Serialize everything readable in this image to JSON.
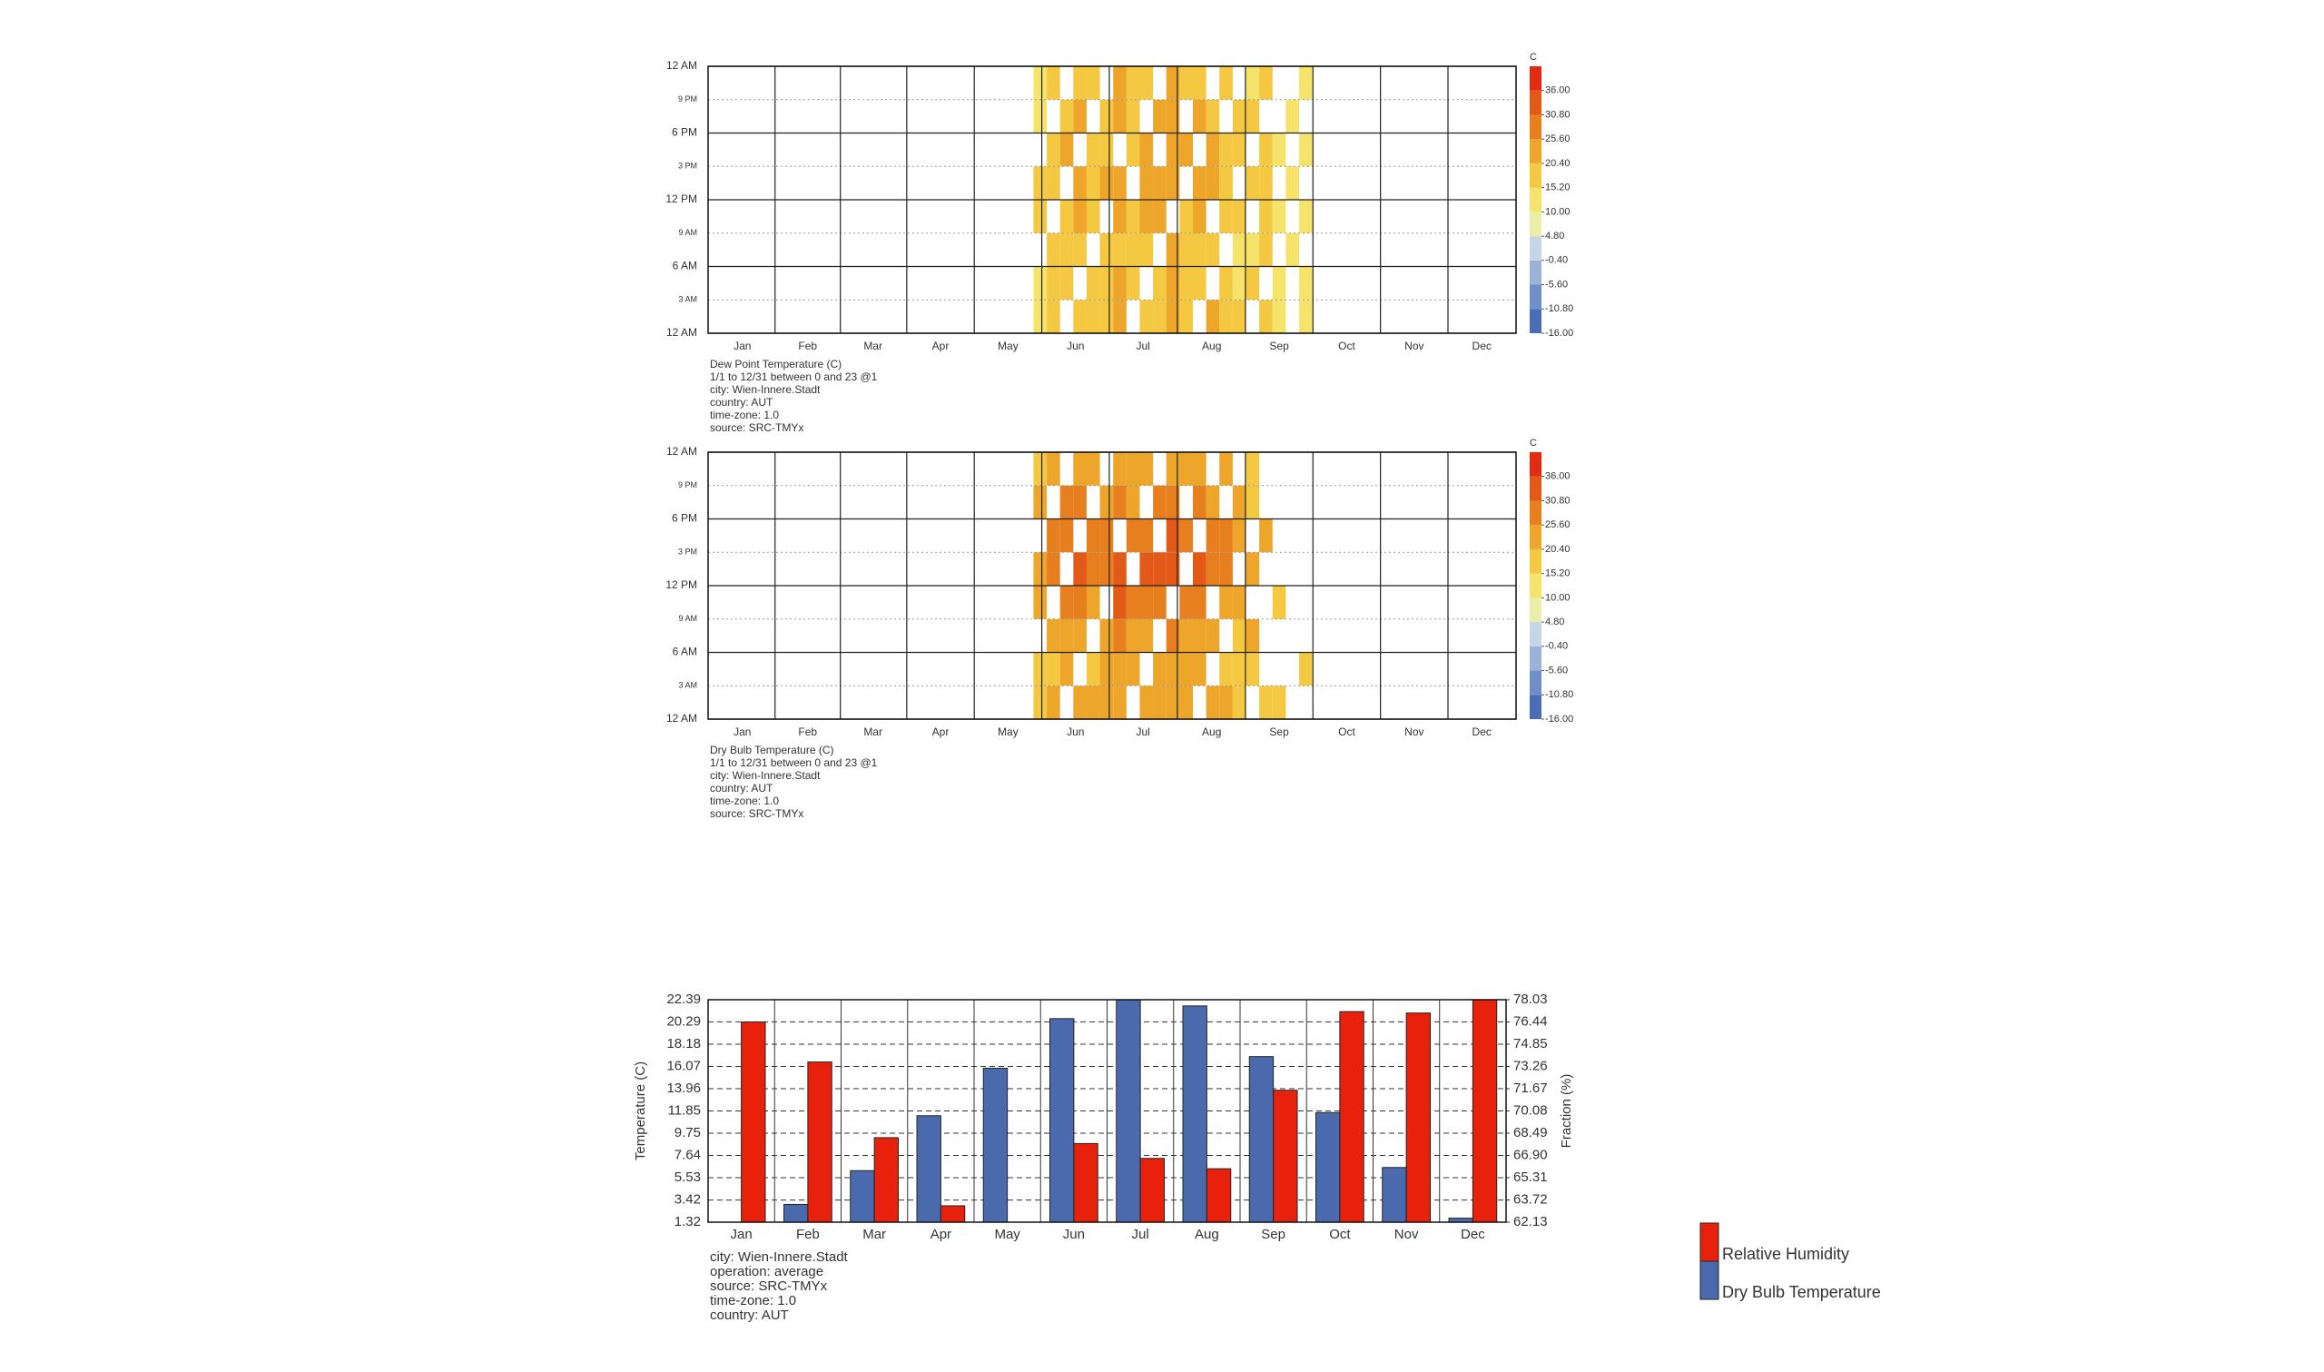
{
  "chart_data": [
    {
      "type": "heatmap",
      "title": "Dew Point Temperature (C)",
      "notes": [
        "1/1 to 12/31 between 0 and 23 @1",
        "city: Wien-Innere.Stadt",
        "country: AUT",
        "time-zone: 1.0",
        "source: SRC-TMYx"
      ],
      "xlim": [
        0,
        365
      ],
      "xticks": [
        {
          "value": 15.5,
          "label": "Jan"
        },
        {
          "value": 45,
          "label": "Feb"
        },
        {
          "value": 74.5,
          "label": "Mar"
        },
        {
          "value": 105,
          "label": "Apr"
        },
        {
          "value": 135.5,
          "label": "May"
        },
        {
          "value": 166,
          "label": "Jun"
        },
        {
          "value": 196.5,
          "label": "Jul"
        },
        {
          "value": 227.5,
          "label": "Aug"
        },
        {
          "value": 258,
          "label": "Sep"
        },
        {
          "value": 288.5,
          "label": "Oct"
        },
        {
          "value": 319,
          "label": "Nov"
        },
        {
          "value": 349.5,
          "label": "Dec"
        }
      ],
      "ylim": [
        0,
        24
      ],
      "yticks": [
        {
          "value": 0,
          "label": "12 AM"
        },
        {
          "value": 3,
          "label": "3 AM"
        },
        {
          "value": 6,
          "label": "6 AM"
        },
        {
          "value": 9,
          "label": "9 AM"
        },
        {
          "value": 12,
          "label": "12 PM"
        },
        {
          "value": 15,
          "label": "3 PM"
        },
        {
          "value": 18,
          "label": "6 PM"
        },
        {
          "value": 21,
          "label": "9 PM"
        },
        {
          "value": 24,
          "label": "12 AM"
        }
      ],
      "x_bins": [
        147,
        153,
        159,
        165,
        171,
        177,
        183,
        189,
        195,
        201,
        207,
        213,
        219,
        225,
        231,
        237,
        243,
        249,
        255,
        261,
        267,
        273
      ],
      "y_bins": [
        0,
        3,
        6,
        9,
        12,
        15,
        18,
        21,
        24
      ],
      "z": [
        [
          15,
          18,
          null,
          20,
          17,
          19,
          22,
          null,
          18,
          20,
          23,
          19,
          null,
          21,
          18,
          16,
          null,
          17,
          14,
          null,
          13
        ],
        [
          14,
          17,
          19,
          null,
          16,
          18,
          21,
          17,
          null,
          19,
          22,
          18,
          20,
          null,
          17,
          15,
          16,
          null,
          13,
          null,
          12
        ],
        [
          null,
          16,
          18,
          19,
          null,
          17,
          20,
          16,
          18,
          null,
          21,
          17,
          19,
          20,
          null,
          14,
          15,
          16,
          null,
          12,
          null
        ],
        [
          16,
          null,
          20,
          21,
          18,
          null,
          23,
          19,
          21,
          22,
          null,
          20,
          22,
          null,
          19,
          17,
          null,
          18,
          15,
          null,
          14
        ],
        [
          17,
          19,
          null,
          22,
          19,
          21,
          24,
          null,
          22,
          23,
          25,
          null,
          23,
          22,
          20,
          null,
          18,
          17,
          null,
          13,
          null
        ],
        [
          null,
          18,
          21,
          null,
          18,
          20,
          null,
          20,
          21,
          null,
          24,
          21,
          null,
          21,
          19,
          18,
          null,
          16,
          14,
          null,
          12
        ],
        [
          15,
          null,
          20,
          21,
          null,
          19,
          22,
          19,
          null,
          21,
          23,
          null,
          21,
          20,
          null,
          17,
          16,
          null,
          null,
          13,
          null
        ],
        [
          14,
          17,
          null,
          20,
          17,
          null,
          21,
          18,
          20,
          null,
          22,
          19,
          20,
          null,
          18,
          null,
          15,
          16,
          null,
          null,
          12
        ]
      ],
      "zlim": [
        -16,
        41.2
      ],
      "colorbar": {
        "label": "C",
        "ticks": [
          {
            "value": -16,
            "label": "-16.00"
          },
          {
            "value": -10.8,
            "label": "-10.80"
          },
          {
            "value": -5.6,
            "label": "-5.60"
          },
          {
            "value": -0.4,
            "label": "-0.40"
          },
          {
            "value": 4.8,
            "label": "4.80"
          },
          {
            "value": 10,
            "label": "10.00"
          },
          {
            "value": 15.2,
            "label": "15.20"
          },
          {
            "value": 20.4,
            "label": "20.40"
          },
          {
            "value": 25.6,
            "label": "25.60"
          },
          {
            "value": 30.8,
            "label": "30.80"
          },
          {
            "value": 36,
            "label": "36.00"
          }
        ],
        "colors": [
          "#4a6db5",
          "#6f8fc8",
          "#9bb3d9",
          "#c5d6e8",
          "#e9eea8",
          "#f6e46a",
          "#f5c842",
          "#eda52a",
          "#e77f1f",
          "#e35a18",
          "#e32a12"
        ]
      }
    },
    {
      "type": "heatmap",
      "title": "Dry Bulb Temperature (C)",
      "notes": [
        "1/1 to 12/31 between 0 and 23 @1",
        "city: Wien-Innere.Stadt",
        "country: AUT",
        "time-zone: 1.0",
        "source: SRC-TMYx"
      ],
      "xlim": [
        0,
        365
      ],
      "xticks": [
        {
          "value": 15.5,
          "label": "Jan"
        },
        {
          "value": 45,
          "label": "Feb"
        },
        {
          "value": 74.5,
          "label": "Mar"
        },
        {
          "value": 105,
          "label": "Apr"
        },
        {
          "value": 135.5,
          "label": "May"
        },
        {
          "value": 166,
          "label": "Jun"
        },
        {
          "value": 196.5,
          "label": "Jul"
        },
        {
          "value": 227.5,
          "label": "Aug"
        },
        {
          "value": 258,
          "label": "Sep"
        },
        {
          "value": 288.5,
          "label": "Oct"
        },
        {
          "value": 319,
          "label": "Nov"
        },
        {
          "value": 349.5,
          "label": "Dec"
        }
      ],
      "ylim": [
        0,
        24
      ],
      "yticks": [
        {
          "value": 0,
          "label": "12 AM"
        },
        {
          "value": 3,
          "label": "3 AM"
        },
        {
          "value": 6,
          "label": "6 AM"
        },
        {
          "value": 9,
          "label": "9 AM"
        },
        {
          "value": 12,
          "label": "12 PM"
        },
        {
          "value": 15,
          "label": "3 PM"
        },
        {
          "value": 18,
          "label": "6 PM"
        },
        {
          "value": 21,
          "label": "9 PM"
        },
        {
          "value": 24,
          "label": "12 AM"
        }
      ],
      "x_bins": [
        147,
        153,
        159,
        165,
        171,
        177,
        183,
        189,
        195,
        201,
        207,
        213,
        219,
        225,
        231,
        237,
        243,
        249,
        255,
        261,
        267,
        273
      ],
      "y_bins": [
        0,
        3,
        6,
        9,
        12,
        15,
        18,
        21,
        24
      ],
      "z": [
        [
          18,
          21,
          null,
          23,
          21,
          22,
          24,
          null,
          22,
          23,
          25,
          21,
          null,
          24,
          21,
          19,
          null,
          20,
          17,
          null,
          null
        ],
        [
          17,
          20,
          22,
          null,
          20,
          21,
          24,
          21,
          null,
          22,
          24,
          21,
          23,
          null,
          20,
          18,
          19,
          null,
          null,
          null,
          16
        ],
        [
          null,
          21,
          23,
          24,
          null,
          23,
          26,
          22,
          24,
          null,
          27,
          23,
          25,
          24,
          null,
          19,
          21,
          null,
          null,
          null,
          null
        ],
        [
          22,
          null,
          27,
          29,
          25,
          null,
          31,
          27,
          29,
          30,
          null,
          28,
          29,
          null,
          25,
          22,
          null,
          null,
          20,
          null,
          null
        ],
        [
          24,
          27,
          null,
          31,
          28,
          30,
          33,
          null,
          31,
          32,
          34,
          null,
          31,
          29,
          27,
          null,
          24,
          null,
          null,
          null,
          null
        ],
        [
          null,
          26,
          29,
          null,
          27,
          29,
          null,
          29,
          30,
          null,
          33,
          29,
          null,
          28,
          26,
          24,
          null,
          22,
          null,
          null,
          null
        ],
        [
          21,
          null,
          26,
          27,
          null,
          25,
          28,
          25,
          null,
          27,
          29,
          null,
          26,
          25,
          null,
          21,
          20,
          null,
          null,
          null,
          null
        ],
        [
          19,
          22,
          null,
          24,
          22,
          null,
          25,
          22,
          24,
          null,
          25,
          22,
          23,
          null,
          21,
          null,
          18,
          null,
          null,
          null,
          null
        ]
      ],
      "zlim": [
        -16,
        41.2
      ],
      "colorbar": {
        "label": "C",
        "ticks": [
          {
            "value": -16,
            "label": "-16.00"
          },
          {
            "value": -10.8,
            "label": "-10.80"
          },
          {
            "value": -5.6,
            "label": "-5.60"
          },
          {
            "value": -0.4,
            "label": "-0.40"
          },
          {
            "value": 4.8,
            "label": "4.80"
          },
          {
            "value": 10,
            "label": "10.00"
          },
          {
            "value": 15.2,
            "label": "15.20"
          },
          {
            "value": 20.4,
            "label": "20.40"
          },
          {
            "value": 25.6,
            "label": "25.60"
          },
          {
            "value": 30.8,
            "label": "30.80"
          },
          {
            "value": 36,
            "label": "36.00"
          }
        ],
        "colors": [
          "#4a6db5",
          "#6f8fc8",
          "#9bb3d9",
          "#c5d6e8",
          "#e9eea8",
          "#f6e46a",
          "#f5c842",
          "#eda52a",
          "#e77f1f",
          "#e35a18",
          "#e32a12"
        ]
      }
    },
    {
      "type": "bar",
      "categories": [
        "Jan",
        "Feb",
        "Mar",
        "Apr",
        "May",
        "Jun",
        "Jul",
        "Aug",
        "Sep",
        "Oct",
        "Nov",
        "Dec"
      ],
      "series": [
        {
          "name": "Dry Bulb Temperature",
          "color": "#4a6aad",
          "axis": "y",
          "values": [
            0.8,
            3.0,
            6.2,
            11.4,
            15.9,
            20.6,
            22.4,
            21.8,
            17.0,
            11.7,
            6.5,
            1.7
          ]
        },
        {
          "name": "Relative Humidity",
          "color": "#e8210c",
          "axis": "y2",
          "values": [
            76.44,
            73.58,
            68.17,
            63.3,
            62.0,
            67.75,
            66.69,
            65.95,
            71.56,
            77.18,
            77.08,
            78.03
          ]
        }
      ],
      "ylabel": "Temperature (C)",
      "y2label": "Fraction (%)",
      "ylim": [
        1.32,
        22.39
      ],
      "yticks": [
        1.32,
        3.42,
        5.53,
        7.64,
        9.75,
        11.85,
        13.96,
        16.07,
        18.18,
        20.29,
        22.39
      ],
      "y2lim": [
        62.13,
        78.03
      ],
      "y2ticks": [
        62.13,
        63.72,
        65.31,
        {
          "value": 66.9,
          "label": "66.90"
        },
        68.49,
        70.08,
        71.67,
        73.26,
        74.85,
        76.44,
        78.03
      ],
      "grid": true,
      "notes": [
        "city: Wien-Innere.Stadt",
        "operation: average",
        "source: SRC-TMYx",
        "time-zone: 1.0",
        "country: AUT"
      ]
    }
  ]
}
